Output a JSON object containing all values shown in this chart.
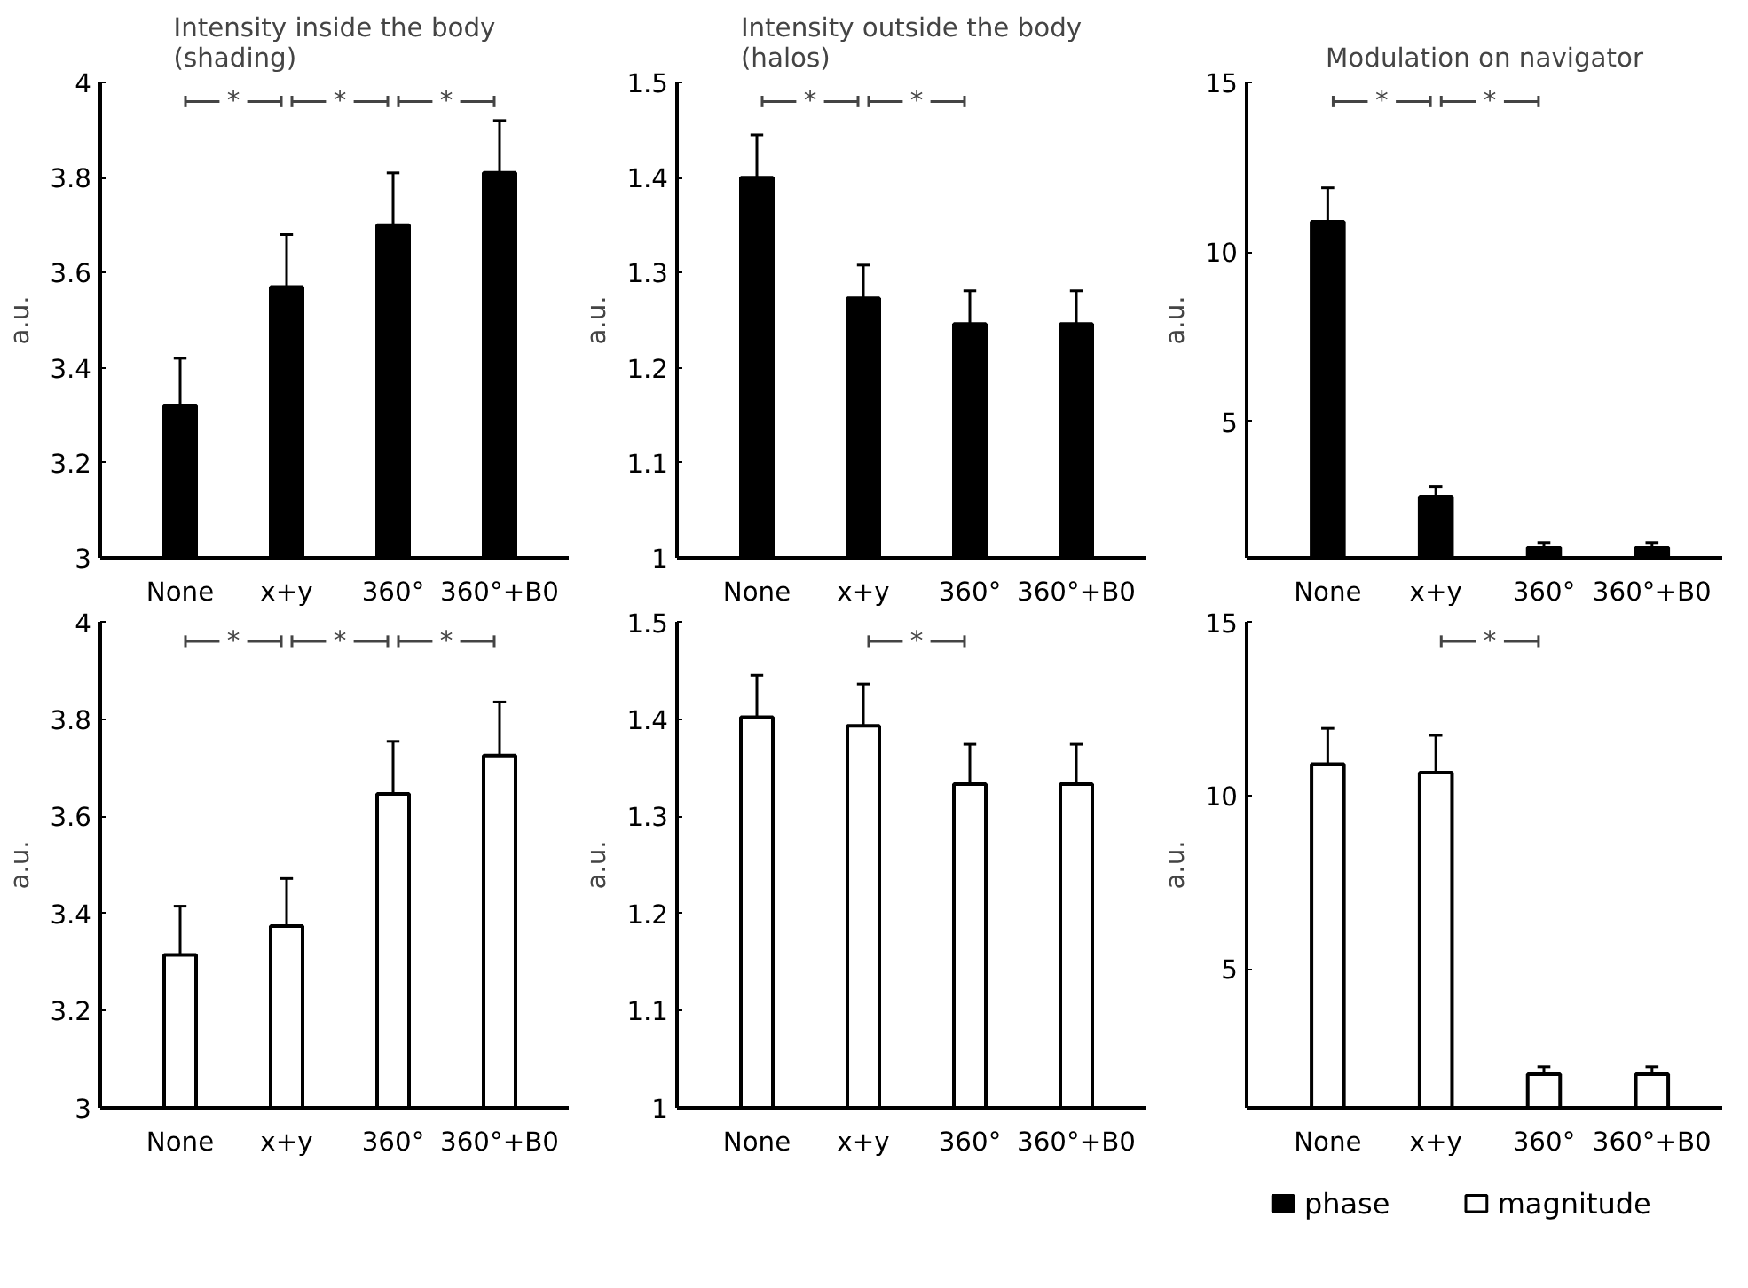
{
  "chart_data": [
    {
      "type": "bar",
      "title": "Intensity inside the body\n(shading)",
      "ylabel": "a.u.",
      "categories": [
        "None",
        "x+y",
        "360°",
        "360°+B0"
      ],
      "series": [
        {
          "color": "#000000",
          "values": [
            3.32,
            3.57,
            3.7,
            3.81
          ],
          "errors": [
            [
              3.32,
              3.42
            ],
            [
              3.57,
              3.68
            ],
            [
              3.7,
              3.81
            ],
            [
              3.81,
              3.92
            ]
          ]
        }
      ],
      "ylim": [
        3,
        4
      ],
      "yticks": [
        3,
        3.2,
        3.4,
        3.6,
        3.8,
        4
      ],
      "annotations": [
        "*",
        "*",
        "*"
      ]
    },
    {
      "type": "bar",
      "title": "Intensity outside the body\n(halos)",
      "ylabel": "a.u.",
      "categories": [
        "None",
        "x+y",
        "360°",
        "360°+B0"
      ],
      "series": [
        {
          "color": "#000000",
          "values": [
            1.4,
            1.273,
            1.246,
            1.246
          ],
          "errors": [
            [
              1.4,
              1.445
            ],
            [
              1.273,
              1.308
            ],
            [
              1.246,
              1.281
            ],
            [
              1.246,
              1.281
            ]
          ]
        }
      ],
      "ylim": [
        1,
        1.5
      ],
      "yticks": [
        1,
        1.1,
        1.2,
        1.3,
        1.4,
        1.5
      ],
      "annotations": [
        "*",
        "*"
      ]
    },
    {
      "type": "bar",
      "title": "Modulation on navigator",
      "ylabel": "a.u.",
      "categories": [
        "None",
        "x+y",
        "360°",
        "360°+B0"
      ],
      "series": [
        {
          "name": "phase",
          "color": "#000000",
          "values": [
            10.9,
            2.8,
            1.3,
            1.3
          ],
          "errors": [
            [
              10.9,
              11.9
            ],
            [
              2.8,
              3.1
            ],
            [
              1.3,
              1.45
            ],
            [
              1.3,
              1.45
            ]
          ]
        }
      ],
      "ylim": [
        1,
        15
      ],
      "yticks": [
        5,
        10,
        15
      ],
      "annotations": [
        "*",
        "*"
      ],
      "legend": "bottom"
    },
    {
      "type": "bar",
      "ylabel": "a.u.",
      "categories": [
        "None",
        "x+y",
        "360°",
        "360°+B0"
      ],
      "series": [
        {
          "color": "#ffffff",
          "values": [
            3.315,
            3.374,
            3.646,
            3.725
          ],
          "errors": [
            [
              3.315,
              3.415
            ],
            [
              3.374,
              3.472
            ],
            [
              3.646,
              3.754
            ],
            [
              3.725,
              3.835
            ]
          ]
        }
      ],
      "ylim": [
        3,
        4
      ],
      "yticks": [
        3,
        3.2,
        3.4,
        3.6,
        3.8,
        4
      ],
      "annotations": [
        "*",
        "*",
        "*"
      ]
    },
    {
      "type": "bar",
      "ylabel": "a.u.",
      "categories": [
        "None",
        "x+y",
        "360°",
        "360°+B0"
      ],
      "series": [
        {
          "color": "#ffffff",
          "values": [
            1.402,
            1.393,
            1.333,
            1.333
          ],
          "errors": [
            [
              1.402,
              1.445
            ],
            [
              1.393,
              1.436
            ],
            [
              1.333,
              1.374
            ],
            [
              1.333,
              1.374
            ]
          ]
        }
      ],
      "ylim": [
        1,
        1.5
      ],
      "yticks": [
        1,
        1.1,
        1.2,
        1.3,
        1.4,
        1.5
      ],
      "annotations": [
        "*"
      ]
    },
    {
      "type": "bar",
      "ylabel": "a.u.",
      "categories": [
        "None",
        "x+y",
        "360°",
        "360°+B0"
      ],
      "series": [
        {
          "name": "magnitude",
          "color": "#ffffff",
          "values": [
            10.9,
            10.66,
            1.97,
            1.97
          ],
          "errors": [
            [
              10.9,
              11.93
            ],
            [
              10.66,
              11.73
            ],
            [
              1.97,
              2.18
            ],
            [
              1.97,
              2.18
            ]
          ]
        }
      ],
      "ylim": [
        1,
        15
      ],
      "yticks": [
        5,
        10,
        15
      ],
      "annotations": [
        "*"
      ],
      "legend": "bottom right"
    }
  ]
}
